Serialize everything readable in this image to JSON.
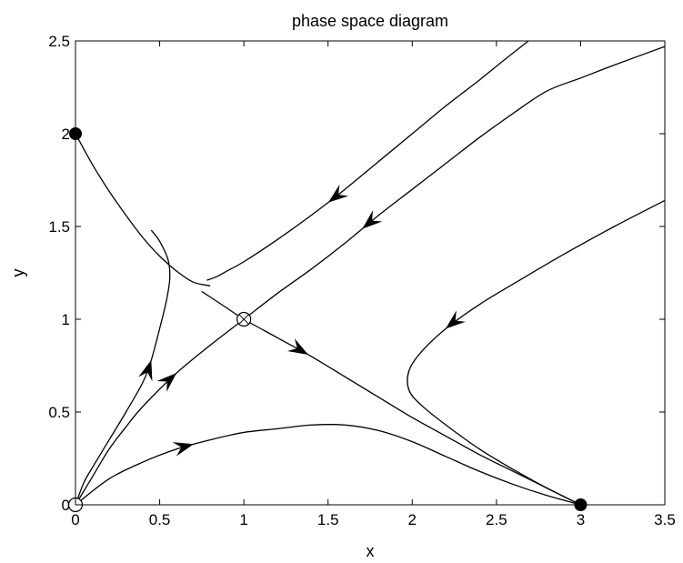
{
  "chart_data": {
    "type": "line",
    "title": "phase space diagram",
    "xlabel": "x",
    "ylabel": "y",
    "xlim": [
      0,
      3.5
    ],
    "ylim": [
      0,
      2.5
    ],
    "xticks": [
      "0",
      "0.5",
      "1",
      "1.5",
      "2",
      "2.5",
      "3",
      "3.5"
    ],
    "yticks": [
      "0",
      "0.5",
      "1",
      "1.5",
      "2",
      "2.5"
    ],
    "grid": false,
    "legend": "none",
    "colors": {
      "line": "#000000",
      "background": "#ffffff"
    },
    "fixed_points": [
      {
        "x": 0,
        "y": 0,
        "kind": "unstable",
        "marker": "open-circle"
      },
      {
        "x": 1,
        "y": 1,
        "kind": "saddle",
        "marker": "circle-with-cross"
      },
      {
        "x": 0,
        "y": 2,
        "kind": "stable",
        "marker": "filled-circle"
      },
      {
        "x": 3,
        "y": 0,
        "kind": "stable",
        "marker": "filled-circle"
      }
    ],
    "series": [
      {
        "points": [
          [
            0,
            2
          ],
          [
            0.1,
            1.835
          ],
          [
            0.2,
            1.69
          ],
          [
            0.3,
            1.56
          ],
          [
            0.4,
            1.44
          ],
          [
            0.5,
            1.34
          ],
          [
            0.6,
            1.26
          ],
          [
            0.7,
            1.2
          ],
          [
            0.8,
            1.18
          ]
        ],
        "arrow": null
      },
      {
        "points": [
          [
            0.78,
            1.21
          ],
          [
            0.84,
            1.23
          ],
          [
            0.9,
            1.26
          ],
          [
            1.0,
            1.31
          ],
          [
            1.2,
            1.43
          ],
          [
            1.4,
            1.56
          ],
          [
            1.6,
            1.7
          ],
          [
            1.8,
            1.85
          ],
          [
            2.0,
            2.0
          ],
          [
            2.2,
            2.15
          ],
          [
            2.4,
            2.29
          ],
          [
            2.55,
            2.4
          ],
          [
            2.69,
            2.5
          ]
        ],
        "arrow": {
          "at": 1.5,
          "direction": "reverse"
        }
      },
      {
        "points": [
          [
            0,
            0
          ],
          [
            0.05,
            0.12
          ],
          [
            0.1,
            0.2
          ],
          [
            0.2,
            0.35
          ],
          [
            0.3,
            0.5
          ],
          [
            0.4,
            0.66
          ],
          [
            0.45,
            0.78
          ],
          [
            0.5,
            0.95
          ],
          [
            0.54,
            1.1
          ],
          [
            0.56,
            1.22
          ],
          [
            0.55,
            1.32
          ],
          [
            0.5,
            1.42
          ],
          [
            0.45,
            1.48
          ]
        ],
        "arrow": {
          "at": 0.45,
          "direction": "forward"
        }
      },
      {
        "points": [
          [
            0,
            0
          ],
          [
            0.1,
            0.15
          ],
          [
            0.2,
            0.3
          ],
          [
            0.3,
            0.42
          ],
          [
            0.4,
            0.53
          ],
          [
            0.6,
            0.71
          ],
          [
            0.8,
            0.86
          ],
          [
            1.0,
            1.0
          ],
          [
            1.2,
            1.14
          ],
          [
            1.4,
            1.27
          ],
          [
            1.6,
            1.41
          ],
          [
            1.8,
            1.56
          ],
          [
            2.0,
            1.7
          ],
          [
            2.2,
            1.84
          ],
          [
            2.4,
            1.98
          ],
          [
            2.6,
            2.11
          ],
          [
            2.8,
            2.23
          ],
          [
            3.0,
            2.3
          ],
          [
            3.2,
            2.37
          ],
          [
            3.5,
            2.47
          ]
        ],
        "arrow": [
          {
            "at": 0.6,
            "direction": "forward"
          },
          {
            "at": 1.7,
            "direction": "reverse"
          }
        ]
      },
      {
        "points": [
          [
            0.75,
            1.15
          ],
          [
            0.9,
            1.06
          ],
          [
            1.0,
            1.0
          ],
          [
            1.2,
            0.9
          ],
          [
            1.4,
            0.8
          ],
          [
            1.6,
            0.69
          ],
          [
            1.8,
            0.58
          ],
          [
            2.0,
            0.47
          ],
          [
            2.2,
            0.37
          ],
          [
            2.4,
            0.27
          ],
          [
            2.6,
            0.18
          ],
          [
            2.8,
            0.09
          ],
          [
            3.0,
            0
          ]
        ],
        "arrow": [
          {
            "at": 0.75,
            "direction": "reverse"
          },
          {
            "at": 1.38,
            "direction": "forward"
          }
        ]
      },
      {
        "points": [
          [
            0,
            0
          ],
          [
            0.2,
            0.14
          ],
          [
            0.4,
            0.23
          ],
          [
            0.6,
            0.3
          ],
          [
            0.8,
            0.35
          ],
          [
            1.0,
            0.39
          ],
          [
            1.2,
            0.41
          ],
          [
            1.4,
            0.43
          ],
          [
            1.6,
            0.43
          ],
          [
            1.8,
            0.4
          ],
          [
            2.0,
            0.34
          ],
          [
            2.2,
            0.26
          ],
          [
            2.4,
            0.18
          ],
          [
            2.6,
            0.11
          ],
          [
            2.8,
            0.05
          ],
          [
            3.0,
            0
          ]
        ],
        "arrow": {
          "at": 0.7,
          "direction": "forward"
        }
      },
      {
        "points": [
          [
            3.5,
            1.64
          ],
          [
            3.2,
            1.5
          ],
          [
            2.9,
            1.35
          ],
          [
            2.6,
            1.19
          ],
          [
            2.4,
            1.08
          ],
          [
            2.2,
            0.95
          ],
          [
            2.05,
            0.82
          ],
          [
            1.98,
            0.72
          ],
          [
            1.98,
            0.62
          ],
          [
            2.05,
            0.54
          ],
          [
            2.2,
            0.43
          ],
          [
            2.4,
            0.3
          ],
          [
            2.6,
            0.19
          ],
          [
            2.8,
            0.09
          ],
          [
            3.0,
            0
          ]
        ],
        "arrow": {
          "at": 2.2,
          "direction": "forward"
        }
      }
    ]
  }
}
